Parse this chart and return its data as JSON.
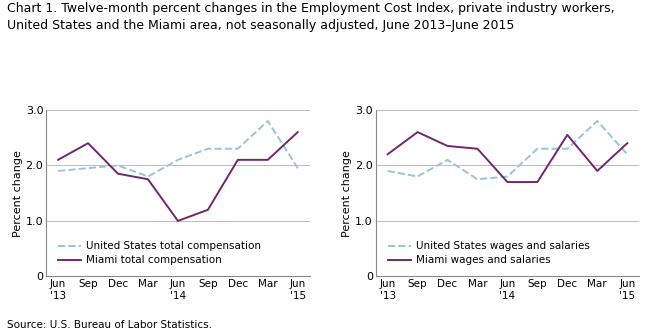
{
  "title_line1": "Chart 1. Twelve-month percent changes in the Employment Cost Index, private industry workers,",
  "title_line2": "United States and the Miami area, not seasonally adjusted, June 2013–June 2015",
  "source": "Source: U.S. Bureau of Labor Statistics.",
  "ylim": [
    0.0,
    3.0
  ],
  "yticks": [
    0.0,
    1.0,
    2.0,
    3.0
  ],
  "ytick_labels": [
    "0",
    "1.0",
    "2.0",
    "3.0"
  ],
  "ylabel": "Percent change",
  "left_us_total": [
    1.9,
    1.95,
    2.0,
    1.8,
    2.1,
    2.3,
    2.3,
    2.8,
    1.95
  ],
  "left_miami_total": [
    2.1,
    2.4,
    1.85,
    1.75,
    1.0,
    1.2,
    2.1,
    2.1,
    2.6
  ],
  "right_us_wages": [
    1.9,
    1.8,
    2.1,
    1.75,
    1.8,
    2.3,
    2.3,
    2.8,
    2.2
  ],
  "right_miami_wages": [
    2.2,
    2.6,
    2.35,
    2.3,
    1.7,
    1.7,
    2.55,
    1.9,
    2.4
  ],
  "us_color": "#97C6D8",
  "miami_color": "#722672",
  "grid_color": "#BBBBBB",
  "legend_left": [
    "United States total compensation",
    "Miami total compensation"
  ],
  "legend_right": [
    "United States wages and salaries",
    "Miami wages and salaries"
  ],
  "x_tick_labels": [
    "Jun\n'13",
    "Sep",
    "Dec",
    "Mar",
    "Jun\n'14",
    "Sep",
    "Dec",
    "Mar",
    "Jun\n'15"
  ]
}
